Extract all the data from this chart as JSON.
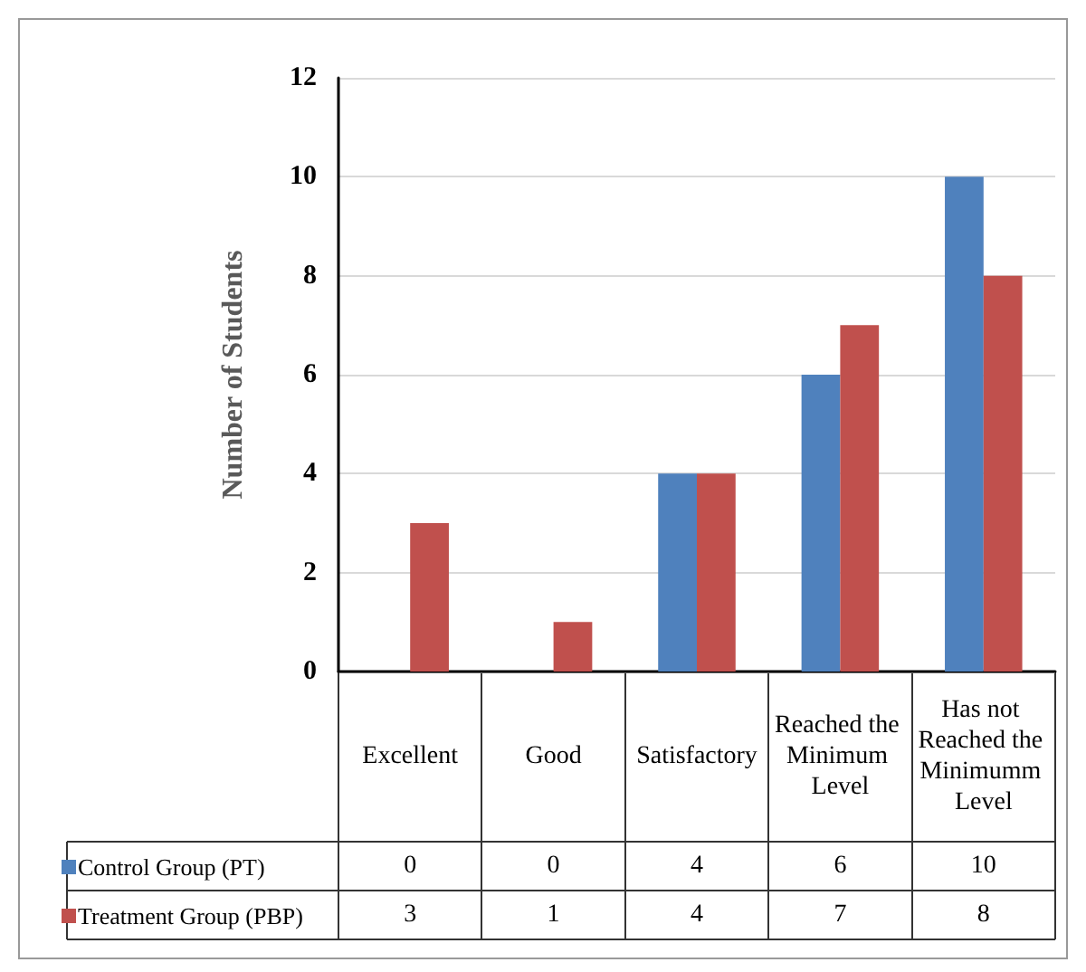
{
  "chart_data": {
    "type": "bar",
    "ylabel": "Number of Students",
    "categories": [
      "Excellent",
      "Good",
      "Satisfactory",
      "Reached the Minimum Level",
      "Has not Reached the Minimumm Level"
    ],
    "series": [
      {
        "name": "Control Group (PT)",
        "color": "#4f81bd",
        "values": [
          0,
          0,
          4,
          6,
          10
        ]
      },
      {
        "name": "Treatment Group (PBP)",
        "color": "#c0504d",
        "values": [
          3,
          1,
          4,
          7,
          8
        ]
      }
    ],
    "ylim": [
      0,
      12
    ],
    "yticks": [
      0,
      2,
      4,
      6,
      8,
      10,
      12
    ],
    "grid": "y",
    "legend": "bottom left",
    "data_labels": true
  }
}
